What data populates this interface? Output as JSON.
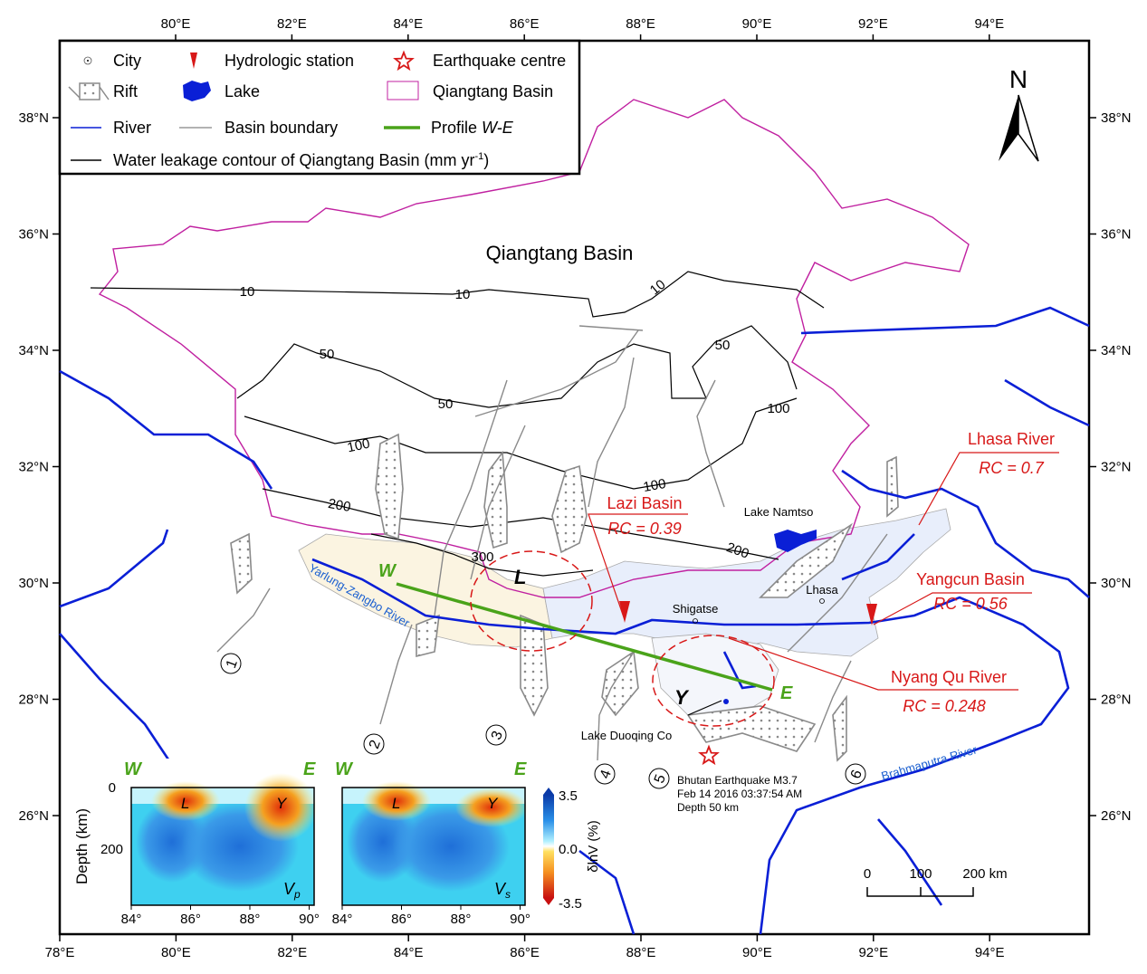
{
  "map": {
    "lon_ticks_top": [
      "80°E",
      "82°E",
      "84°E",
      "86°E",
      "88°E",
      "90°E",
      "92°E",
      "94°E"
    ],
    "lon_ticks_bottom": [
      "78°E",
      "80°E",
      "82°E",
      "84°E",
      "86°E",
      "88°E",
      "90°E",
      "92°E",
      "94°E"
    ],
    "lat_ticks": [
      "38°N",
      "36°N",
      "34°N",
      "32°N",
      "30°N",
      "28°N",
      "26°N"
    ],
    "north_label": "N",
    "basin_title": "Qiangtang Basin",
    "colors": {
      "river": "#0a1fd6",
      "basin": "#c020a0",
      "profile": "#4aa31a",
      "annotation": "#d81818",
      "rift": "#8a8a8a",
      "contour": "#000000",
      "lazi_fill": "#fbf4e1",
      "lhasa_fill": "#e8eefb"
    }
  },
  "legend": {
    "city": "City",
    "hydro": "Hydrologic station",
    "quake": "Earthquake centre",
    "rift": "Rift",
    "lake": "Lake",
    "qiangtang": "Qiangtang Basin",
    "river": "River",
    "basin_boundary": "Basin boundary",
    "profile": "Profile ",
    "profile_we": "W-E",
    "contour": "Water leakage contour of Qiangtang Basin (mm yr",
    "contour_sup": "-1",
    "contour_end": ")"
  },
  "contour_labels": [
    "10",
    "10",
    "10",
    "50",
    "50",
    "50",
    "100",
    "100",
    "100",
    "200",
    "200",
    "300"
  ],
  "places": {
    "lake_namtso": "Lake Namtso",
    "lhasa": "Lhasa",
    "shigatse": "Shigatse",
    "lake_duoqing": "Lake Duoqing Co",
    "yarlung": "Yarlung-Zangbo River",
    "brahmaputra": "Brahmaputra River"
  },
  "profile": {
    "w": "W",
    "e": "E",
    "l": "L",
    "y": "Y"
  },
  "annotations": {
    "lhasa_river": {
      "name": "Lhasa River",
      "rc": "RC = 0.7"
    },
    "lazi_basin": {
      "name": "Lazi Basin",
      "rc": "RC = 0.39"
    },
    "yangcun_basin": {
      "name": "Yangcun Basin",
      "rc": "RC = 0.56"
    },
    "nyang_qu": {
      "name": "Nyang Qu River",
      "rc": "RC = 0.248"
    }
  },
  "rift_numbers": [
    "1",
    "2",
    "3",
    "4",
    "5",
    "6"
  ],
  "earthquake": {
    "line1": "Bhutan Earthquake M3.7",
    "line2": "Feb 14 2016 03:37:54 AM",
    "line3": "Depth 50 km"
  },
  "scale_bar": {
    "labels": [
      "0",
      "100",
      "200 km"
    ]
  },
  "insets": {
    "ylabel": "Depth (km)",
    "yticks": [
      "0",
      "200"
    ],
    "xticks": [
      "84°",
      "86°",
      "88°",
      "90°"
    ],
    "panels": [
      {
        "w": "W",
        "e": "E",
        "l": "L",
        "y": "Y",
        "v": "V",
        "sub": "p"
      },
      {
        "w": "W",
        "e": "E",
        "l": "L",
        "y": "Y",
        "v": "V",
        "sub": "s"
      }
    ],
    "colorbar": {
      "max": "3.5",
      "mid": "0.0",
      "min": "-3.5",
      "label": "δlnV (%)"
    }
  }
}
